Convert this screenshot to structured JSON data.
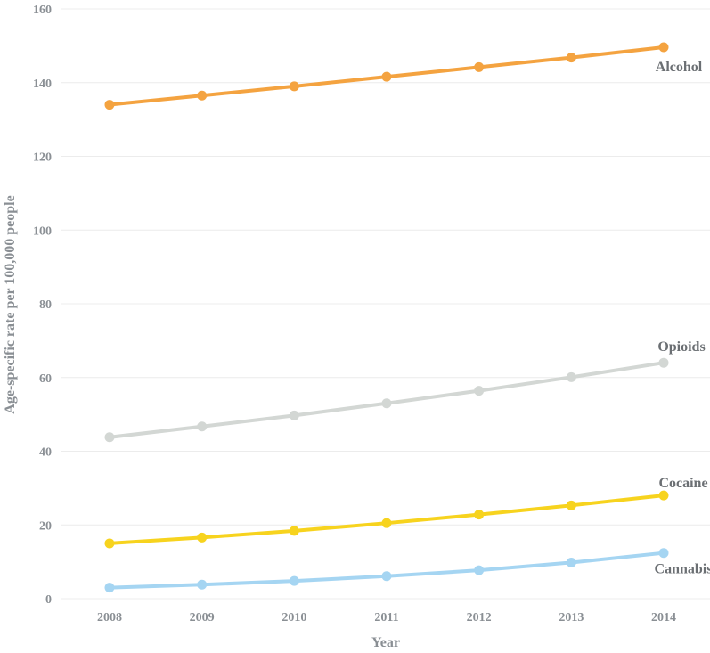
{
  "chart_data": {
    "type": "line",
    "title": "",
    "xlabel": "Year",
    "ylabel": "Age-specific rate per 100,000 people",
    "categories": [
      "2008",
      "2009",
      "2010",
      "2011",
      "2012",
      "2013",
      "2014"
    ],
    "ylim": [
      0,
      160
    ],
    "yticks": [
      0,
      20,
      40,
      60,
      80,
      100,
      120,
      140,
      160
    ],
    "grid": true,
    "series": [
      {
        "name": "Alcohol",
        "color": "#f4a340",
        "values": [
          134,
          136.5,
          139,
          141.6,
          144.2,
          146.8,
          149.6
        ]
      },
      {
        "name": "Opioids",
        "color": "#d3d7d4",
        "values": [
          43.8,
          46.7,
          49.7,
          53,
          56.4,
          60.1,
          64
        ]
      },
      {
        "name": "Cocaine",
        "color": "#f7d31e",
        "values": [
          15,
          16.6,
          18.4,
          20.5,
          22.8,
          25.3,
          28
        ]
      },
      {
        "name": "Cannabis",
        "color": "#a5d5f2",
        "values": [
          3,
          3.8,
          4.8,
          6.1,
          7.7,
          9.8,
          12.4
        ]
      }
    ]
  }
}
